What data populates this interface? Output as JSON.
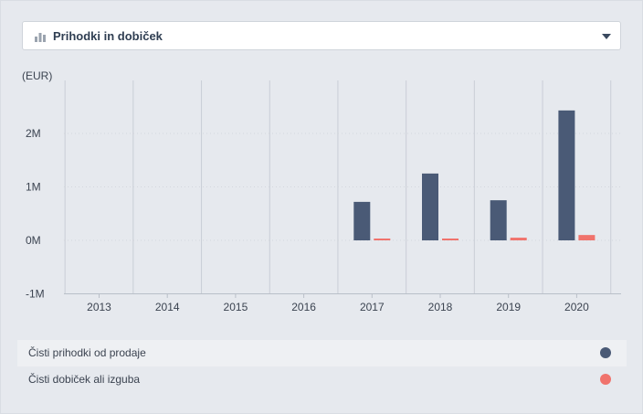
{
  "dropdown": {
    "label": "Prihodki in dobiček",
    "icon": "bar-chart-icon",
    "caret": "chevron-down-icon"
  },
  "chart_data": {
    "type": "bar",
    "unit_label": "(EUR)",
    "categories": [
      "2013",
      "2014",
      "2015",
      "2016",
      "2017",
      "2018",
      "2019",
      "2020"
    ],
    "series": [
      {
        "name": "Čisti prihodki od prodaje",
        "color": "#4a5a76",
        "values": [
          null,
          null,
          null,
          null,
          720000,
          1250000,
          750000,
          2430000
        ]
      },
      {
        "name": "Čisti dobiček ali izguba",
        "color": "#f0736c",
        "values": [
          null,
          null,
          null,
          null,
          20000,
          20000,
          50000,
          100000
        ]
      }
    ],
    "y_ticks": [
      {
        "value": -1000000,
        "label": "-1M"
      },
      {
        "value": 0,
        "label": "0M"
      },
      {
        "value": 1000000,
        "label": "1M"
      },
      {
        "value": 2000000,
        "label": "2M"
      }
    ],
    "ylim": [
      -1000000,
      3000000
    ],
    "grid": "vertical lines between categories, dotted horizontal baselines",
    "legend_position": "bottom"
  },
  "legend": [
    {
      "label": "Čisti prihodki od prodaje",
      "color": "#4a5a76"
    },
    {
      "label": "Čisti dobiček ali izguba",
      "color": "#f0736c"
    }
  ]
}
